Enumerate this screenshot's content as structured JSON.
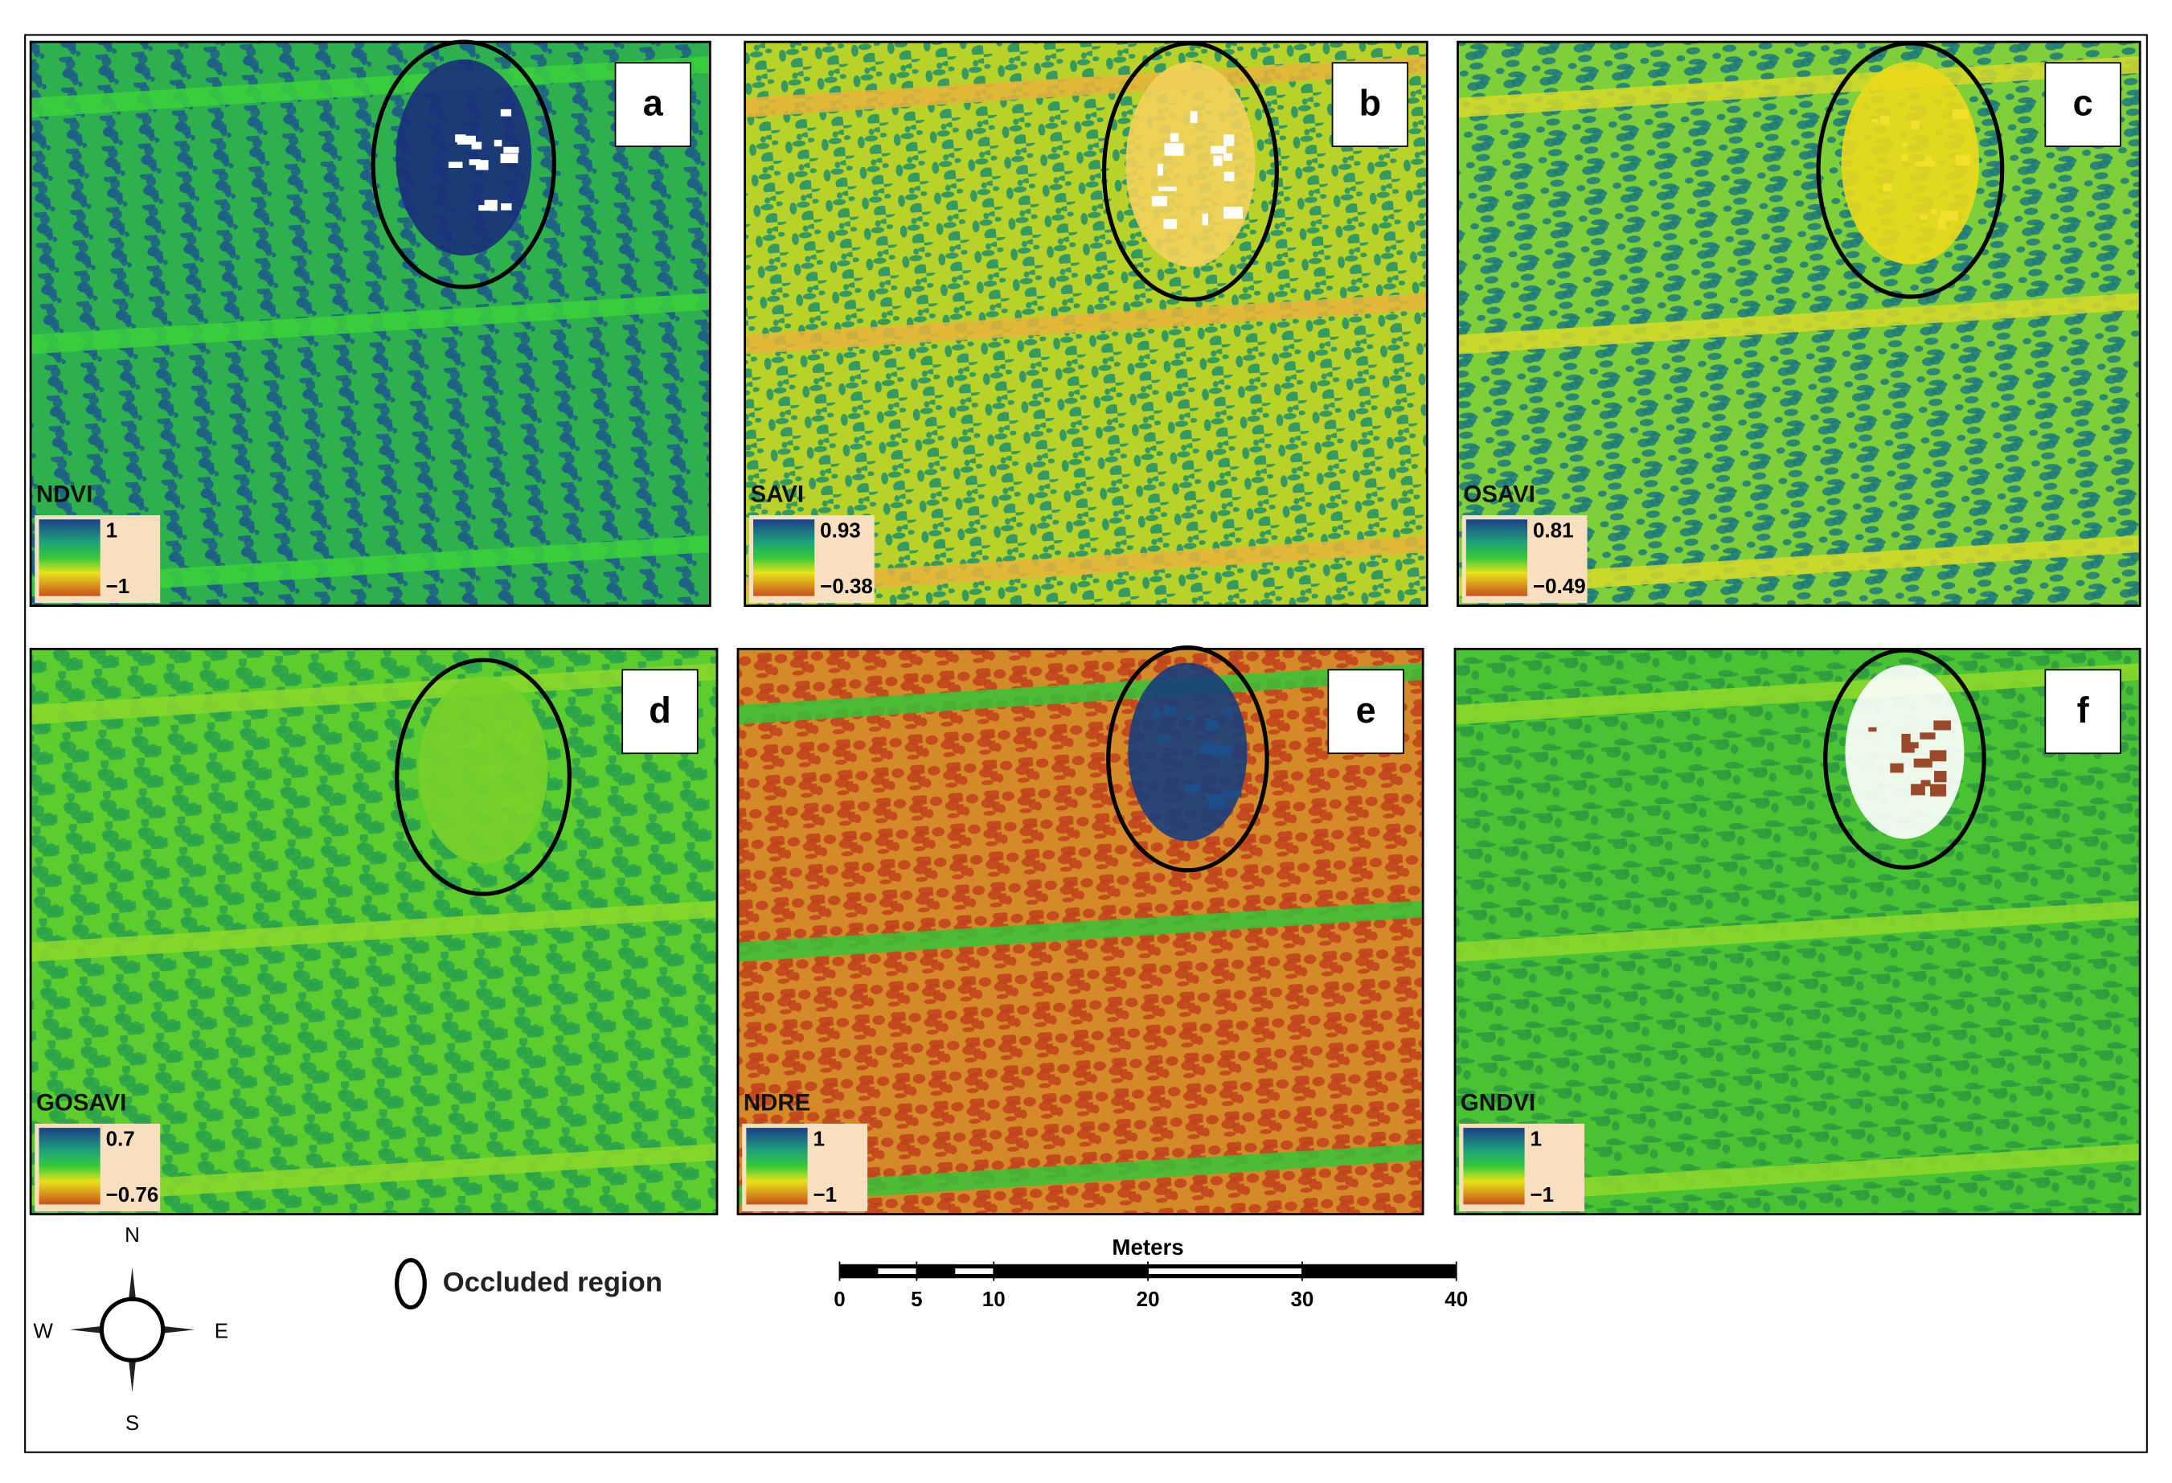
{
  "panels": [
    {
      "letter": "a",
      "index": "NDVI",
      "max": "1",
      "min": "−1"
    },
    {
      "letter": "b",
      "index": "SAVI",
      "max": "0.93",
      "min": "−0.38"
    },
    {
      "letter": "c",
      "index": "OSAVI",
      "max": "0.81",
      "min": "−0.49"
    },
    {
      "letter": "d",
      "index": "GOSAVI",
      "max": "0.7",
      "min": "−0.76"
    },
    {
      "letter": "e",
      "index": "NDRE",
      "max": "1",
      "min": "−1"
    },
    {
      "letter": "f",
      "index": "GNDVI",
      "max": "1",
      "min": "−1"
    }
  ],
  "compass": {
    "north": "N",
    "south": "S",
    "east": "E",
    "west": "W"
  },
  "legend": {
    "label": "Occluded region"
  },
  "scale_bar": {
    "title": "Meters",
    "ticks": [
      0,
      5,
      10,
      20,
      30,
      40
    ]
  }
}
